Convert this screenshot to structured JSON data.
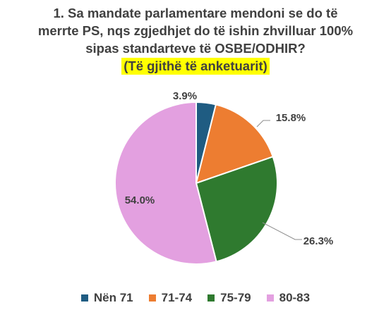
{
  "title_lines": [
    "1. Sa mandate parlamentare mendoni se do të",
    "merrte PS, nqs zgjedhjet do të ishin zhvilluar 100%",
    "sipas standarteve të OSBE/ODHIR?"
  ],
  "subtitle": "(Të gjithë të anketuarit)",
  "chart_data": {
    "type": "pie",
    "title": "1. Sa mandate parlamentare mendoni se do të merrte PS, nqs zgjedhjet do të ishin zhvilluar 100% sipas standarteve të OSBE/ODHIR?",
    "subtitle": "(Të gjithë të anketuarit)",
    "categories": [
      "Nën 71",
      "71-74",
      "75-79",
      "80-83"
    ],
    "values": [
      3.9,
      15.8,
      26.3,
      54.0
    ],
    "data_labels": [
      "3.9%",
      "15.8%",
      "26.3%",
      "54.0%"
    ],
    "colors": [
      "#1f5c82",
      "#ed7d31",
      "#2f7a2f",
      "#e3a0e0"
    ],
    "start_angle_deg": 0,
    "direction": "clockwise",
    "legend_position": "bottom"
  }
}
